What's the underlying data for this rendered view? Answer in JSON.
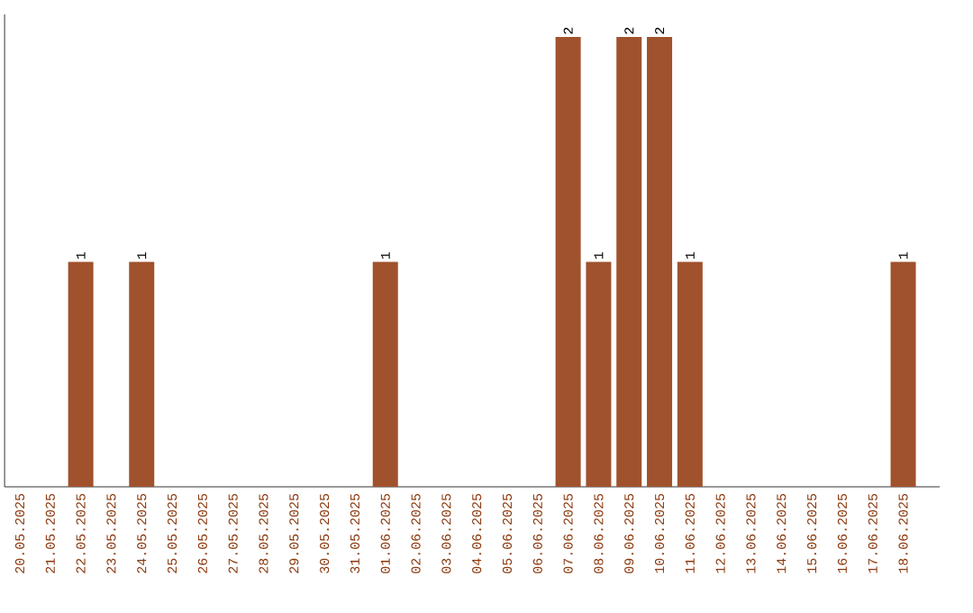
{
  "chart_data": {
    "type": "bar",
    "categories": [
      "20.05.2025",
      "21.05.2025",
      "22.05.2025",
      "23.05.2025",
      "24.05.2025",
      "25.05.2025",
      "26.05.2025",
      "27.05.2025",
      "28.05.2025",
      "29.05.2025",
      "30.05.2025",
      "31.05.2025",
      "01.06.2025",
      "02.06.2025",
      "03.06.2025",
      "04.06.2025",
      "05.06.2025",
      "06.06.2025",
      "07.06.2025",
      "08.06.2025",
      "09.06.2025",
      "10.06.2025",
      "11.06.2025",
      "12.06.2025",
      "13.06.2025",
      "14.06.2025",
      "15.06.2025",
      "16.06.2025",
      "17.06.2025",
      "18.06.2025"
    ],
    "values": [
      0,
      0,
      1,
      0,
      1,
      0,
      0,
      0,
      0,
      0,
      0,
      0,
      1,
      0,
      0,
      0,
      0,
      0,
      2,
      1,
      2,
      2,
      1,
      0,
      0,
      0,
      0,
      0,
      0,
      1
    ],
    "value_labels": [
      null,
      null,
      "1",
      null,
      "1",
      null,
      null,
      null,
      null,
      null,
      null,
      null,
      "1",
      null,
      null,
      null,
      null,
      null,
      "2",
      "1",
      "2",
      "2",
      "1",
      null,
      null,
      null,
      null,
      null,
      null,
      "1"
    ],
    "color": "#a0522d",
    "ylim": [
      0,
      2.1
    ],
    "tick_labels": "x",
    "grid": false
  }
}
